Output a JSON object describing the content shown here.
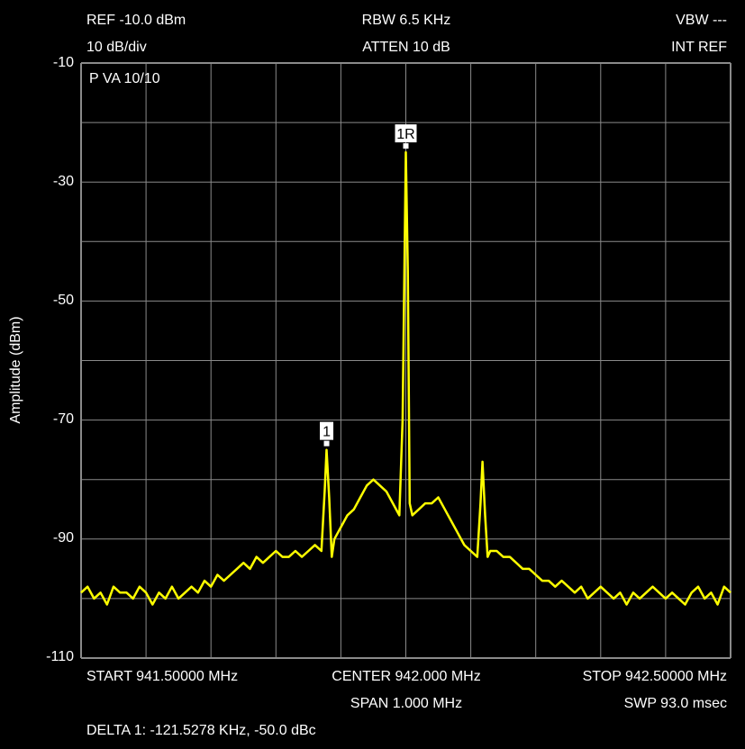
{
  "header": {
    "ref": "REF -10.0 dBm",
    "scale": "10 dB/div",
    "rbw": "RBW 6.5 KHz",
    "atten": "ATTEN 10 dB",
    "vbw": "VBW ---",
    "intref": "INT REF",
    "trace_mode": "P  VA 10/10"
  },
  "footer": {
    "start": "START 941.50000 MHz",
    "center": "CENTER 942.000 MHz",
    "stop": "STOP 942.50000 MHz",
    "span": "SPAN 1.000 MHz",
    "sweep": "SWP 93.0 msec",
    "delta": "DELTA 1: -121.5278 KHz, -50.0 dBc"
  },
  "chart_data": {
    "type": "line",
    "ylabel": "Amplitude (dBm)",
    "xlim": [
      941.5,
      942.5
    ],
    "ylim": [
      -110,
      -10
    ],
    "yticks": [
      "-10",
      "-30",
      "-50",
      "-70",
      "-90",
      "-110"
    ],
    "grid": true,
    "trace_color": "#ffff00",
    "markers": [
      {
        "label": "1R",
        "x": 942.0,
        "y": -25
      },
      {
        "label": "1",
        "x": 941.878,
        "y": -75
      }
    ],
    "series": [
      {
        "x": [
          941.5,
          941.51,
          941.52,
          941.53,
          941.54,
          941.55,
          941.56,
          941.57,
          941.58,
          941.59,
          941.6,
          941.61,
          941.62,
          941.63,
          941.64,
          941.65,
          941.66,
          941.67,
          941.68,
          941.69,
          941.7,
          941.71,
          941.72,
          941.73,
          941.74,
          941.75,
          941.76,
          941.77,
          941.78,
          941.79,
          941.8,
          941.81,
          941.82,
          941.83,
          941.84,
          941.85,
          941.86,
          941.87,
          941.875,
          941.878,
          941.882,
          941.886,
          941.89,
          941.895,
          941.9,
          941.91,
          941.92,
          941.93,
          941.94,
          941.95,
          941.96,
          941.97,
          941.98,
          941.99,
          941.995,
          942.0,
          942.003,
          942.006,
          942.01,
          942.02,
          942.03,
          942.04,
          942.05,
          942.06,
          942.07,
          942.08,
          942.09,
          942.1,
          942.11,
          942.115,
          942.118,
          942.122,
          942.126,
          942.13,
          942.14,
          942.15,
          942.16,
          942.17,
          942.18,
          942.19,
          942.2,
          942.21,
          942.22,
          942.23,
          942.24,
          942.25,
          942.26,
          942.27,
          942.28,
          942.29,
          942.3,
          942.31,
          942.32,
          942.33,
          942.34,
          942.35,
          942.36,
          942.37,
          942.38,
          942.39,
          942.4,
          942.41,
          942.42,
          942.43,
          942.44,
          942.45,
          942.46,
          942.47,
          942.48,
          942.49,
          942.5
        ],
        "y": [
          -99,
          -98,
          -100,
          -99,
          -101,
          -98,
          -99,
          -99,
          -100,
          -98,
          -99,
          -101,
          -99,
          -100,
          -98,
          -100,
          -99,
          -98,
          -99,
          -97,
          -98,
          -96,
          -97,
          -96,
          -95,
          -94,
          -95,
          -93,
          -94,
          -93,
          -92,
          -93,
          -93,
          -92,
          -93,
          -92,
          -91,
          -92,
          -82,
          -75,
          -83,
          -93,
          -90,
          -89,
          -88,
          -86,
          -85,
          -83,
          -81,
          -80,
          -81,
          -82,
          -84,
          -86,
          -70,
          -25,
          -45,
          -84,
          -86,
          -85,
          -84,
          -84,
          -83,
          -85,
          -87,
          -89,
          -91,
          -92,
          -93,
          -84,
          -77,
          -86,
          -93,
          -92,
          -92,
          -93,
          -93,
          -94,
          -95,
          -95,
          -96,
          -97,
          -97,
          -98,
          -97,
          -98,
          -99,
          -98,
          -100,
          -99,
          -98,
          -99,
          -100,
          -99,
          -101,
          -99,
          -100,
          -99,
          -98,
          -99,
          -100,
          -99,
          -100,
          -101,
          -99,
          -98,
          -100,
          -99,
          -101,
          -98,
          -99
        ]
      }
    ]
  }
}
